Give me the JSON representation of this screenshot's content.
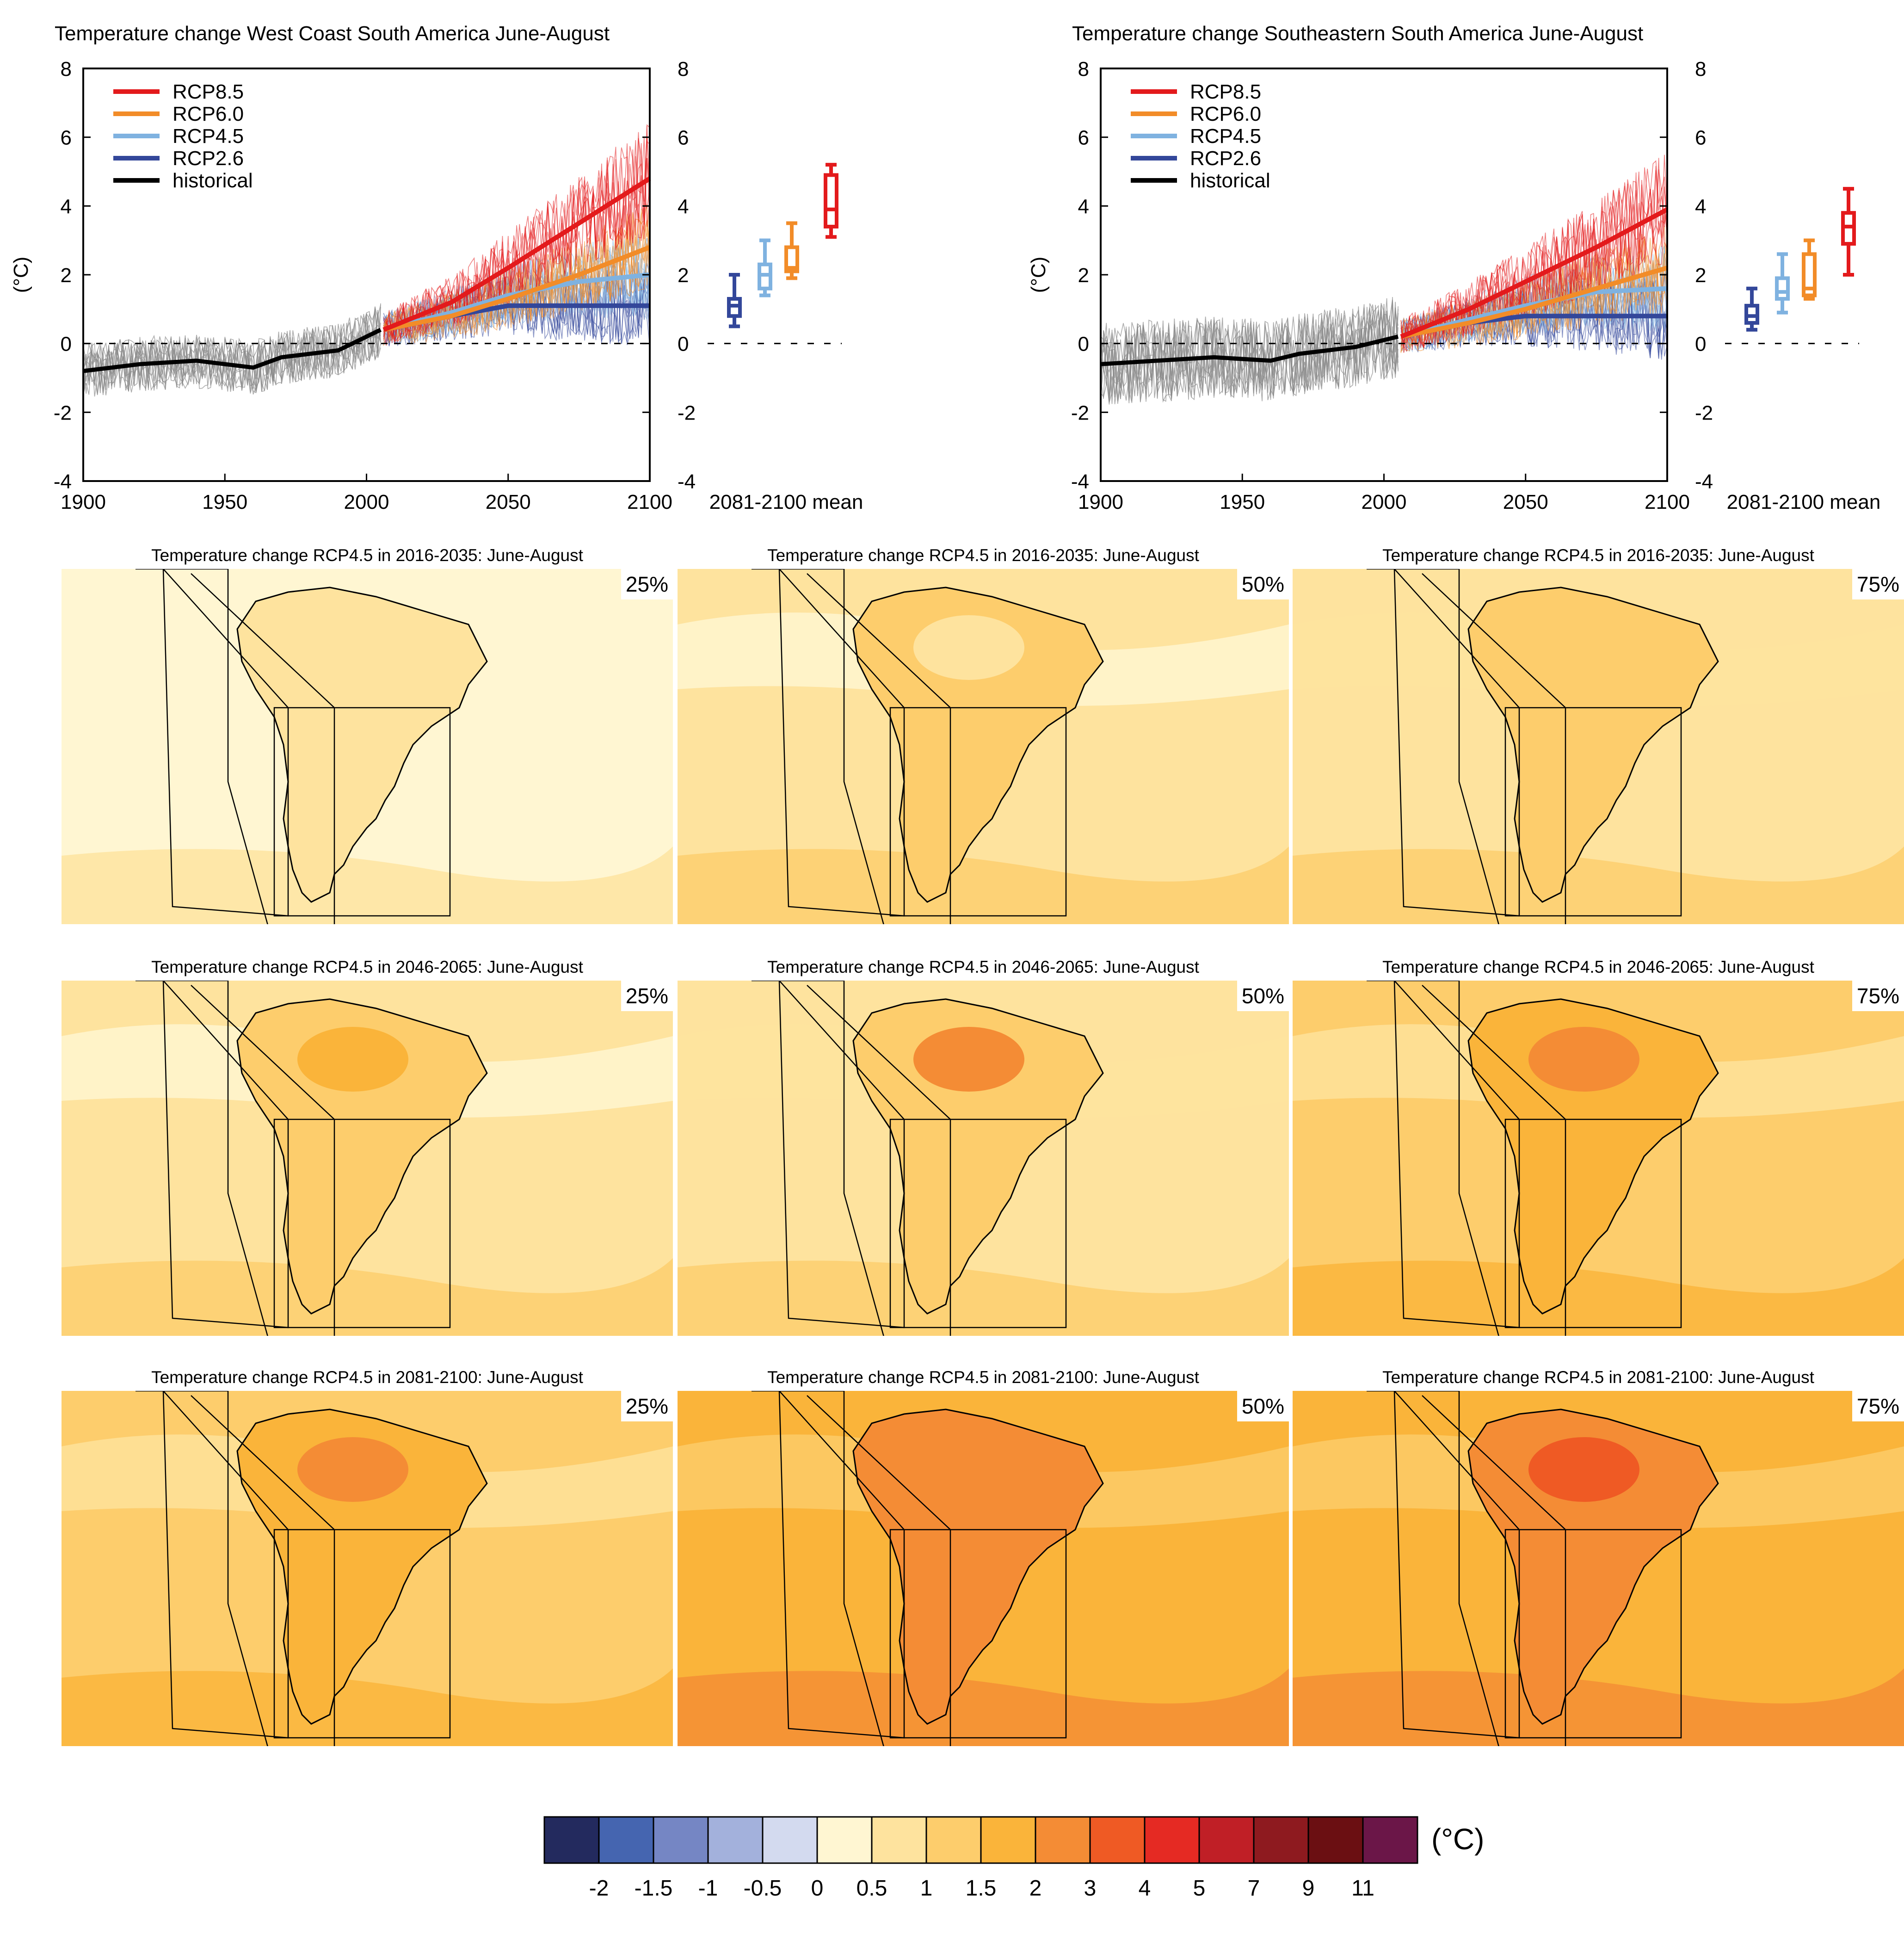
{
  "figure": {
    "timeseries_panels": [
      {
        "title": "Temperature change West Coast South America June-August",
        "y_unit_label": "(°C)",
        "mean_label": "2081-2100 mean"
      },
      {
        "title": "Temperature change Southeastern South America June-August",
        "y_unit_label": "(°C)",
        "mean_label": "2081-2100 mean"
      }
    ],
    "legend": [
      {
        "name": "RCP8.5",
        "color": "#e31a1c"
      },
      {
        "name": "RCP6.0",
        "color": "#f28c28"
      },
      {
        "name": "RCP4.5",
        "color": "#7fb2e0"
      },
      {
        "name": "RCP2.6",
        "color": "#33479a"
      },
      {
        "name": "historical",
        "color": "#000000"
      }
    ],
    "maps": [
      [
        {
          "title": "Temperature change RCP4.5 in 2016-2035: June-August",
          "percentile": "25%"
        },
        {
          "title": "Temperature change RCP4.5 in 2016-2035: June-August",
          "percentile": "50%"
        },
        {
          "title": "Temperature change RCP4.5 in 2016-2035: June-August",
          "percentile": "75%"
        }
      ],
      [
        {
          "title": "Temperature change RCP4.5 in 2046-2065: June-August",
          "percentile": "25%"
        },
        {
          "title": "Temperature change RCP4.5 in 2046-2065: June-August",
          "percentile": "50%"
        },
        {
          "title": "Temperature change RCP4.5 in 2046-2065: June-August",
          "percentile": "75%"
        }
      ],
      [
        {
          "title": "Temperature change RCP4.5 in 2081-2100: June-August",
          "percentile": "25%"
        },
        {
          "title": "Temperature change RCP4.5 in 2081-2100: June-August",
          "percentile": "50%"
        },
        {
          "title": "Temperature change RCP4.5 in 2081-2100: June-August",
          "percentile": "75%"
        }
      ]
    ],
    "colorbar": {
      "unit": "(°C)",
      "labels": [
        "-2",
        "-1.5",
        "-1",
        "-0.5",
        "0",
        "0.5",
        "1",
        "1.5",
        "2",
        "3",
        "4",
        "5",
        "7",
        "9",
        "11"
      ],
      "colors": [
        "#232a5e",
        "#4565b0",
        "#7586c4",
        "#a3b1dc",
        "#d3daef",
        "#fff6d2",
        "#fee39e",
        "#fdcd6c",
        "#fab43a",
        "#f48c35",
        "#ef5a24",
        "#e52a23",
        "#c01f26",
        "#8e1a1f",
        "#6b0f12",
        "#6b1648"
      ]
    }
  },
  "chart_data": [
    {
      "type": "line",
      "title": "Temperature change West Coast South America June-August",
      "ylabel": "(°C)",
      "xlim": [
        1900,
        2100
      ],
      "ylim": [
        -4,
        8
      ],
      "x_ticks": [
        1900,
        1950,
        2000,
        2050,
        2100
      ],
      "y_ticks": [
        -4,
        -2,
        0,
        2,
        4,
        6,
        8
      ],
      "series": [
        {
          "name": "historical",
          "x": [
            1900,
            1920,
            1940,
            1960,
            1970,
            1990,
            2005
          ],
          "values": [
            -0.8,
            -0.6,
            -0.5,
            -0.7,
            -0.4,
            -0.2,
            0.4
          ]
        },
        {
          "name": "RCP2.6",
          "x": [
            2006,
            2030,
            2050,
            2075,
            2100
          ],
          "values": [
            0.4,
            0.8,
            1.1,
            1.1,
            1.1
          ]
        },
        {
          "name": "RCP4.5",
          "x": [
            2006,
            2030,
            2050,
            2075,
            2100
          ],
          "values": [
            0.4,
            0.9,
            1.4,
            1.8,
            2.0
          ]
        },
        {
          "name": "RCP6.0",
          "x": [
            2006,
            2030,
            2050,
            2075,
            2100
          ],
          "values": [
            0.4,
            0.8,
            1.3,
            2.0,
            2.8
          ]
        },
        {
          "name": "RCP8.5",
          "x": [
            2006,
            2030,
            2050,
            2075,
            2100
          ],
          "values": [
            0.4,
            1.2,
            2.2,
            3.5,
            4.8
          ]
        }
      ],
      "mean_2081_2100_boxes": [
        {
          "name": "RCP2.6",
          "min": 0.5,
          "q1": 0.8,
          "median": 1.1,
          "q3": 1.3,
          "max": 2.0
        },
        {
          "name": "RCP4.5",
          "min": 1.4,
          "q1": 1.6,
          "median": 2.0,
          "q3": 2.3,
          "max": 3.0
        },
        {
          "name": "RCP6.0",
          "min": 1.9,
          "q1": 2.1,
          "median": 2.2,
          "q3": 2.8,
          "max": 3.5
        },
        {
          "name": "RCP8.5",
          "min": 3.1,
          "q1": 3.4,
          "median": 3.9,
          "q3": 4.9,
          "max": 5.2
        }
      ]
    },
    {
      "type": "line",
      "title": "Temperature change Southeastern South America June-August",
      "ylabel": "(°C)",
      "xlim": [
        1900,
        2100
      ],
      "ylim": [
        -4,
        8
      ],
      "x_ticks": [
        1900,
        1950,
        2000,
        2050,
        2100
      ],
      "y_ticks": [
        -4,
        -2,
        0,
        2,
        4,
        6,
        8
      ],
      "series": [
        {
          "name": "historical",
          "x": [
            1900,
            1920,
            1940,
            1960,
            1970,
            1990,
            2005
          ],
          "values": [
            -0.6,
            -0.5,
            -0.4,
            -0.5,
            -0.3,
            -0.1,
            0.2
          ]
        },
        {
          "name": "RCP2.6",
          "x": [
            2006,
            2030,
            2050,
            2075,
            2100
          ],
          "values": [
            0.2,
            0.6,
            0.8,
            0.8,
            0.8
          ]
        },
        {
          "name": "RCP4.5",
          "x": [
            2006,
            2030,
            2050,
            2075,
            2100
          ],
          "values": [
            0.2,
            0.7,
            1.1,
            1.5,
            1.6
          ]
        },
        {
          "name": "RCP6.0",
          "x": [
            2006,
            2030,
            2050,
            2075,
            2100
          ],
          "values": [
            0.2,
            0.6,
            1.0,
            1.6,
            2.2
          ]
        },
        {
          "name": "RCP8.5",
          "x": [
            2006,
            2030,
            2050,
            2075,
            2100
          ],
          "values": [
            0.2,
            1.0,
            1.8,
            2.8,
            3.9
          ]
        }
      ],
      "mean_2081_2100_boxes": [
        {
          "name": "RCP2.6",
          "min": 0.4,
          "q1": 0.6,
          "median": 0.8,
          "q3": 1.1,
          "max": 1.6
        },
        {
          "name": "RCP4.5",
          "min": 0.9,
          "q1": 1.3,
          "median": 1.5,
          "q3": 1.9,
          "max": 2.6
        },
        {
          "name": "RCP6.0",
          "min": 1.3,
          "q1": 1.4,
          "median": 1.6,
          "q3": 2.6,
          "max": 3.0
        },
        {
          "name": "RCP8.5",
          "min": 2.0,
          "q1": 2.9,
          "median": 3.4,
          "q3": 3.8,
          "max": 4.5
        }
      ]
    }
  ]
}
